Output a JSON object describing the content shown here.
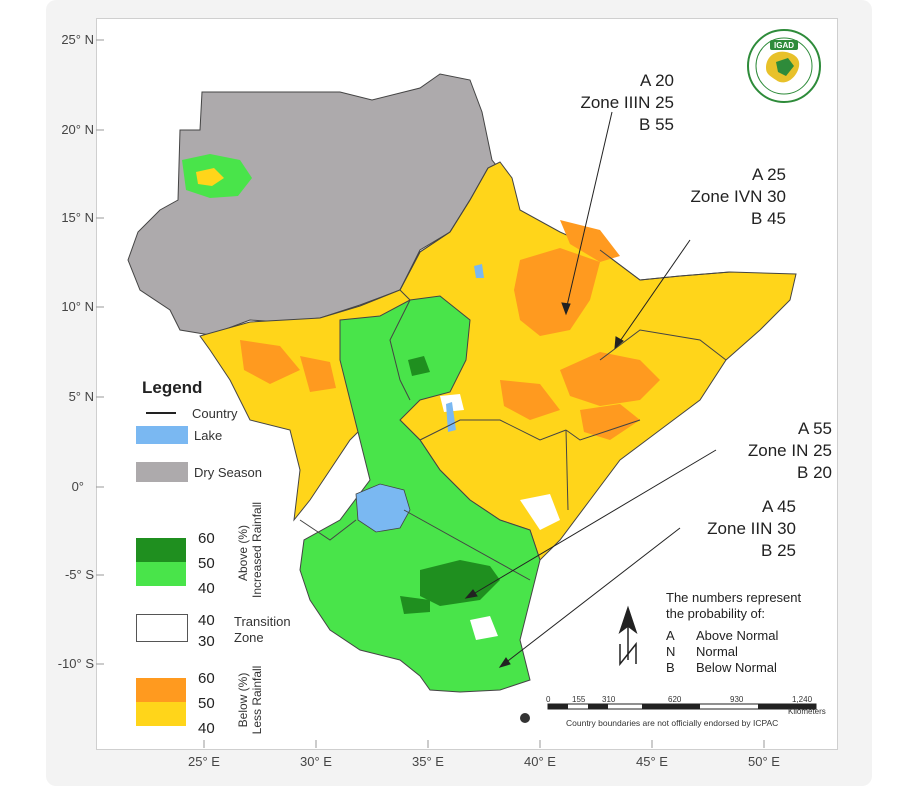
{
  "latitude_labels": [
    "25° N",
    "20° N",
    "15° N",
    "10° N",
    "5° N",
    "0°",
    "-5° S",
    "-10° S"
  ],
  "longitude_labels": [
    "25° E",
    "30° E",
    "35° E",
    "40° E",
    "45° E",
    "50° E"
  ],
  "zones": [
    {
      "a": "A 20",
      "name": "Zone III",
      "n": "N 25",
      "b": "B 55"
    },
    {
      "a": "A 25",
      "name": "Zone IV",
      "n": "N 30",
      "b": "B 45"
    },
    {
      "a": "A 55",
      "name": "Zone I",
      "n": "N 25",
      "b": "B 20"
    },
    {
      "a": "A 45",
      "name": "Zone II",
      "n": "N 30",
      "b": "B 25"
    }
  ],
  "legend": {
    "title": "Legend",
    "country": "Country",
    "lake": "Lake",
    "dry_season": "Dry Season",
    "above_line1": "Above (%)",
    "above_line2": "Increased Rainfall",
    "above_values": [
      "60",
      "50",
      "40"
    ],
    "transition_values": [
      "40",
      "30"
    ],
    "transition_line1": "Transition",
    "transition_line2": "Zone",
    "below_line1": "Below (%)",
    "below_line2": "Less Rainfall",
    "below_values": [
      "60",
      "50",
      "40"
    ],
    "colors": {
      "above_high": "#1f8f1f",
      "above_low": "#49e44a",
      "transition": "#ffffff",
      "below_high": "#ff9a1f",
      "below_low": "#ffd51a",
      "lake": "#7ab8f2",
      "dry_season": "#adaaac"
    }
  },
  "probability_note": {
    "line1": "The numbers represent",
    "line2": "the probability of:",
    "items": [
      {
        "key": "A",
        "label": "Above Normal"
      },
      {
        "key": "N",
        "label": "Normal"
      },
      {
        "key": "B",
        "label": "Below Normal"
      }
    ]
  },
  "scale_bar": {
    "ticks": [
      "0",
      "155",
      "310",
      "620",
      "930",
      "1,240"
    ],
    "unit": "Kilometers"
  },
  "disclaimer": "Country boundaries are not officially endorsed by ICPAC",
  "logo_text": "IGAD"
}
